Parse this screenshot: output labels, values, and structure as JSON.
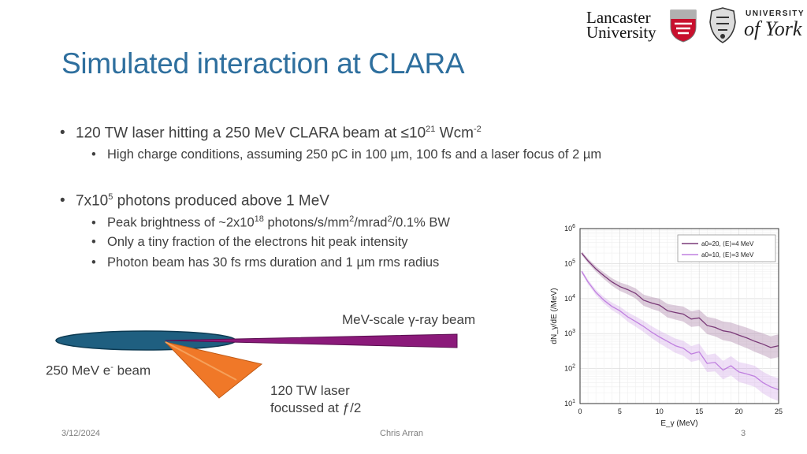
{
  "logos": {
    "lancaster_line1": "Lancaster",
    "lancaster_line2": "University",
    "york_line1": "UNIVERSITY",
    "york_line2": "of York"
  },
  "title": "Simulated interaction at CLARA",
  "bullets": {
    "b1": {
      "pre": "120 TW laser hitting a 250 MeV CLARA beam at ≤10",
      "sup1": "21",
      "mid": " Wcm",
      "sup2": "-2"
    },
    "b1_sub1": "High charge conditions, assuming 250 pC in 100 µm, 100 fs and a laser focus of 2 µm",
    "b2": {
      "pre": "7x10",
      "sup1": "5",
      "post": " photons produced above 1 MeV"
    },
    "b2_sub1": {
      "pre": "Peak brightness of ~2x10",
      "sup1": "18",
      "mid1": " photons/s/mm",
      "sup2": "2",
      "mid2": "/mrad",
      "sup3": "2",
      "post": "/0.1% BW"
    },
    "b2_sub2": "Only a tiny fraction of the electrons hit peak intensity",
    "b2_sub3": "Photon beam has 30 fs rms duration and 1 µm rms radius"
  },
  "diagram": {
    "gamma_label": "MeV-scale γ-ray beam",
    "ebeam_label_pre": "250 MeV e",
    "ebeam_label_sup": "-",
    "ebeam_label_post": " beam",
    "laser_line1": "120 TW laser",
    "laser_line2": "focussed at ƒ/2",
    "colors": {
      "ebeam": "#1f5f80",
      "gamma": "#8b1a7a",
      "laser": "#f07828"
    }
  },
  "chart_data": {
    "type": "line",
    "title": "",
    "xlabel": "E_γ (MeV)",
    "ylabel": "dN_γ/dE (/MeV)",
    "xlim": [
      0,
      25
    ],
    "ylim": [
      10,
      1000000
    ],
    "yscale": "log",
    "x_ticks": [
      "0",
      "5",
      "10",
      "15",
      "20",
      "25"
    ],
    "y_ticks": [
      "10^1",
      "10^2",
      "10^3",
      "10^4",
      "10^5",
      "10^6"
    ],
    "grid": true,
    "legend_position": "top-right",
    "x": [
      0.2,
      1,
      2,
      3,
      4,
      5,
      6,
      7,
      8,
      9,
      10,
      11,
      12,
      13,
      14,
      15,
      16,
      17,
      18,
      19,
      20,
      21,
      22,
      23,
      24,
      25
    ],
    "series": [
      {
        "name": "a0=20, ⟨E⟩=4 MeV",
        "color": "#7a3a78",
        "values": [
          200000,
          120000,
          70000,
          45000,
          30000,
          22000,
          18000,
          14000,
          9000,
          7500,
          6500,
          4500,
          4000,
          3600,
          2600,
          2800,
          1700,
          1500,
          1200,
          1100,
          900,
          750,
          600,
          500,
          400,
          450
        ]
      },
      {
        "name": "a0=10, ⟨E⟩=3 MeV",
        "color": "#c080e0",
        "values": [
          60000,
          30000,
          15000,
          9000,
          6000,
          4500,
          3000,
          2200,
          1600,
          1100,
          800,
          600,
          450,
          380,
          260,
          300,
          140,
          150,
          90,
          120,
          80,
          70,
          60,
          40,
          30,
          25
        ]
      }
    ]
  },
  "footer": {
    "date": "3/12/2024",
    "author": "Chris Arran",
    "page": "3"
  }
}
